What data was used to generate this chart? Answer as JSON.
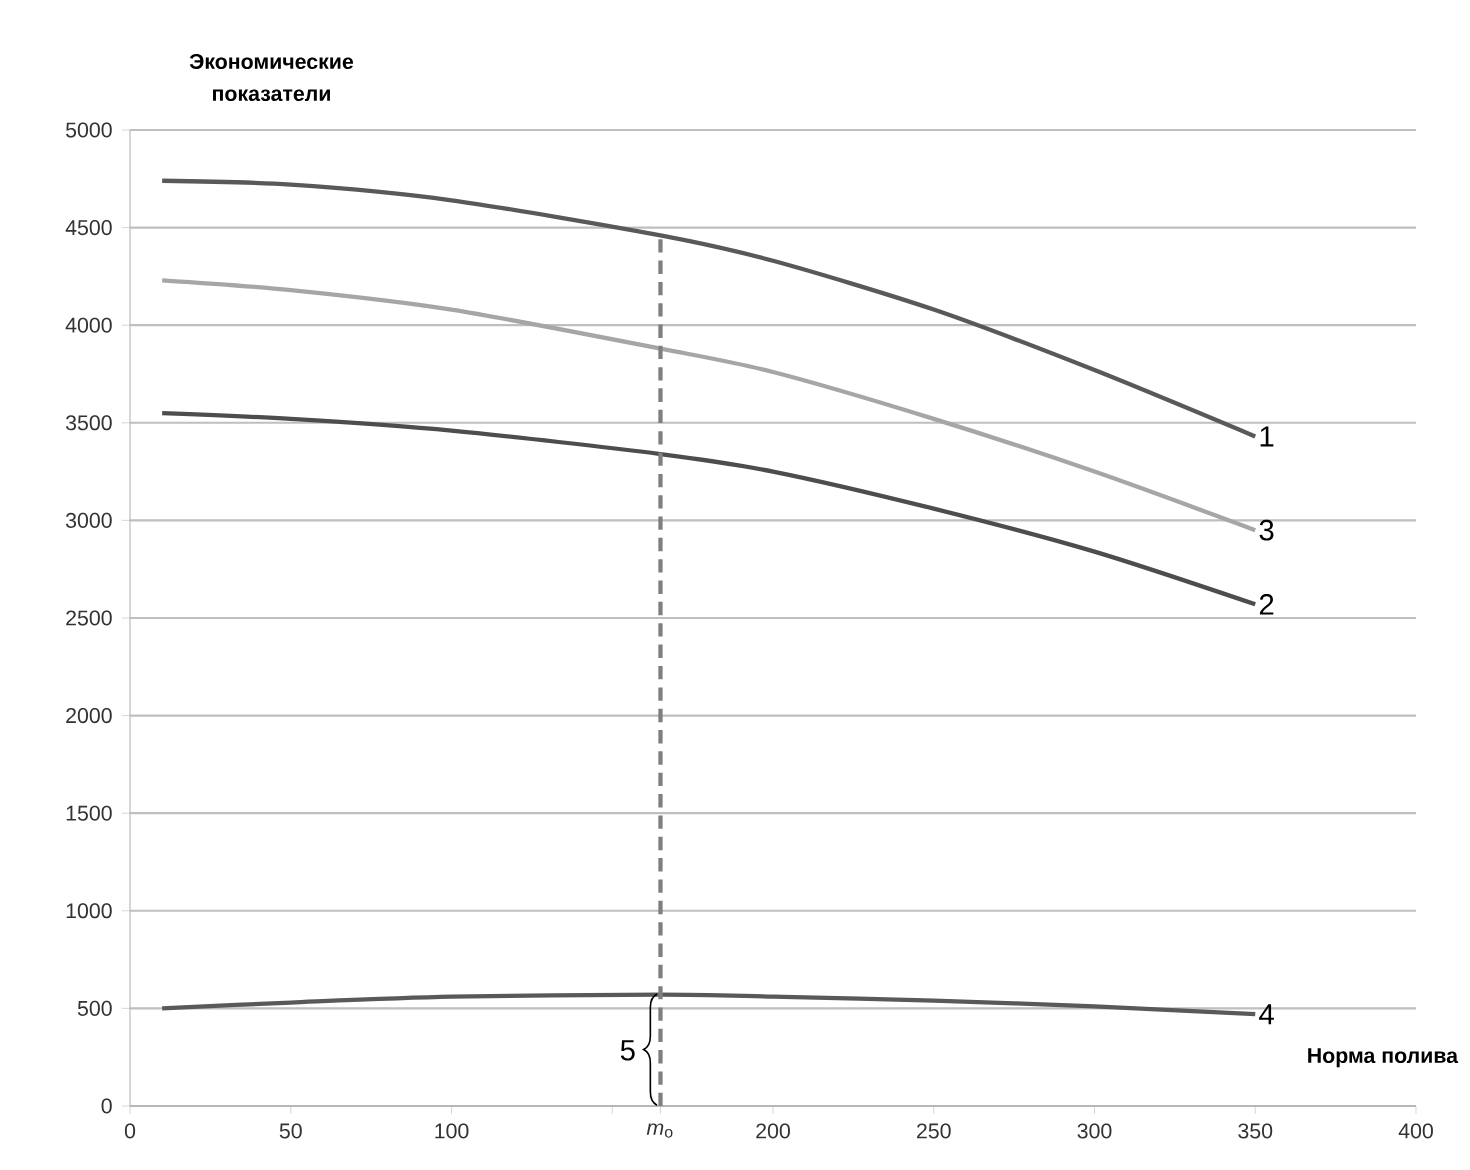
{
  "chart_data": {
    "type": "line",
    "xlabel": "Норма полива",
    "ylabel": "Экономические показатели",
    "xlim": [
      0,
      400
    ],
    "ylim": [
      0,
      5000
    ],
    "xticks": [
      0,
      50,
      100,
      {
        "value": 150,
        "label": null
      },
      {
        "value": 165,
        "label": "*m*$_{o}$"
      },
      200,
      250,
      300,
      350,
      400
    ],
    "yticks": [
      0,
      500,
      1000,
      1500,
      2000,
      2500,
      3000,
      3500,
      4000,
      4500,
      5000
    ],
    "grid": "y",
    "marker": "none",
    "line_style": "solid",
    "x": [
      10,
      50,
      100,
      165,
      200,
      250,
      300,
      350
    ],
    "series": [
      {
        "name": "1",
        "color": "#595959",
        "values": [
          4740,
          4720,
          4640,
          4460,
          4330,
          4080,
          3770,
          3430
        ]
      },
      {
        "name": "2",
        "color": "#4d4d4d",
        "values": [
          3550,
          3520,
          3460,
          3340,
          3250,
          3060,
          2840,
          2570
        ]
      },
      {
        "name": "3",
        "color": "#a6a6a6",
        "values": [
          4230,
          4180,
          4080,
          3880,
          3760,
          3520,
          3250,
          2950
        ]
      },
      {
        "name": "4",
        "color": "#595959",
        "values": [
          500,
          530,
          560,
          570,
          560,
          540,
          510,
          470
        ]
      },
      {
        "color": "#7f7f7f",
        "line_style": "dashed",
        "x": [
          165,
          165
        ],
        "values": [
          0,
          4460
        ]
      }
    ],
    "annotations": [
      {
        "text": "5",
        "x": 165,
        "y": 570
      }
    ]
  }
}
